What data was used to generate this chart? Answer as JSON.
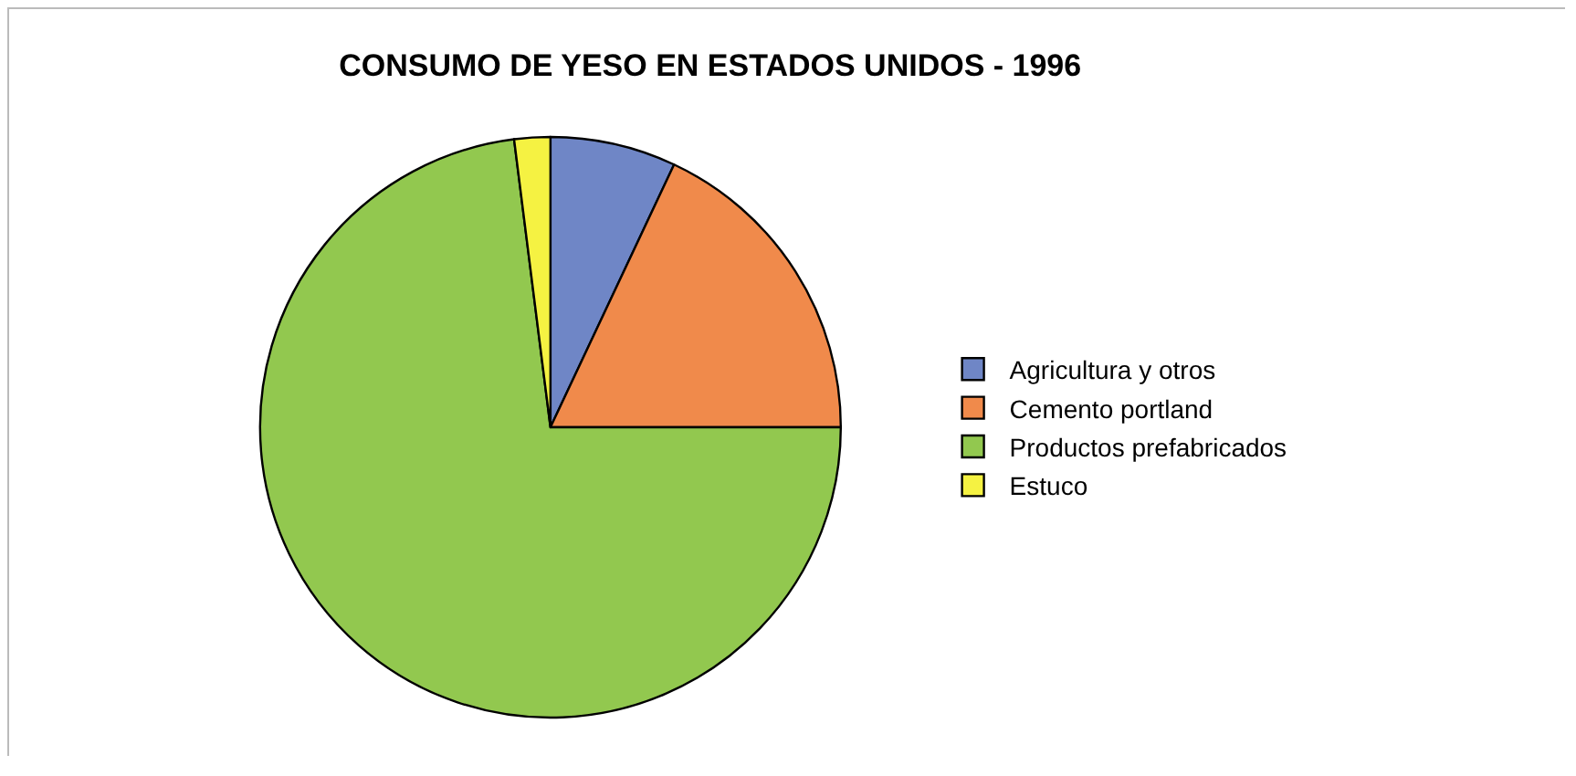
{
  "chart_data": {
    "type": "pie",
    "title": "CONSUMO DE YESO EN ESTADOS UNIDOS - 1996",
    "categories": [
      "Agricultura y otros",
      "Cemento portland",
      "Productos prefabricados",
      "Estuco"
    ],
    "values": [
      7,
      18,
      73,
      2
    ],
    "colors": [
      "#6f86c6",
      "#f08a4b",
      "#92c84f",
      "#f5f242"
    ],
    "legend": "right"
  }
}
